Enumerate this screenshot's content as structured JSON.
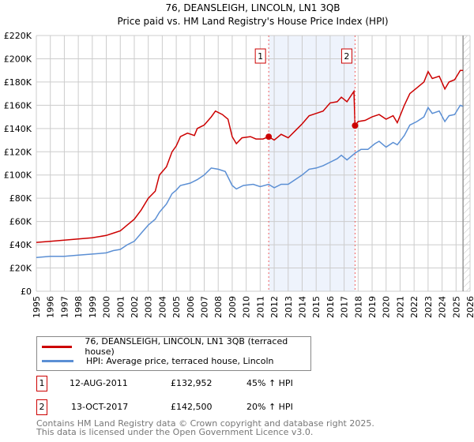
{
  "chart_data": {
    "type": "line",
    "title": "76, DEANSLEIGH, LINCOLN, LN1 3QB",
    "subtitle": "Price paid vs. HM Land Registry's House Price Index (HPI)",
    "xlim": [
      1995,
      2026
    ],
    "ylim": [
      0,
      220000
    ],
    "yticks": [
      0,
      20000,
      40000,
      60000,
      80000,
      100000,
      120000,
      140000,
      160000,
      180000,
      200000,
      220000
    ],
    "ytick_labels": [
      "£0",
      "£20K",
      "£40K",
      "£60K",
      "£80K",
      "£100K",
      "£120K",
      "£140K",
      "£160K",
      "£180K",
      "£200K",
      "£220K"
    ],
    "xticks": [
      1995,
      1996,
      1997,
      1998,
      1999,
      2000,
      2001,
      2002,
      2003,
      2004,
      2005,
      2006,
      2007,
      2008,
      2009,
      2010,
      2011,
      2012,
      2013,
      2014,
      2015,
      2016,
      2017,
      2018,
      2019,
      2020,
      2021,
      2022,
      2023,
      2024,
      2025,
      2026
    ],
    "grid": true,
    "shaded_range": [
      2011.61,
      2017.78
    ],
    "forecast_hatch_from": 2025.5,
    "series": [
      {
        "name": "76, DEANSLEIGH, LINCOLN, LN1 3QB (terraced house)",
        "color": "#cc0000",
        "points": [
          [
            1995,
            42
          ],
          [
            1996,
            43
          ],
          [
            1997,
            44
          ],
          [
            1998,
            45
          ],
          [
            1999,
            46
          ],
          [
            2000,
            48
          ],
          [
            2000.5,
            50
          ],
          [
            2001,
            52
          ],
          [
            2001.5,
            57
          ],
          [
            2002,
            62
          ],
          [
            2002.5,
            70
          ],
          [
            2003,
            80
          ],
          [
            2003.5,
            86
          ],
          [
            2003.8,
            100
          ],
          [
            2004.3,
            107
          ],
          [
            2004.7,
            120
          ],
          [
            2005,
            125
          ],
          [
            2005.3,
            133
          ],
          [
            2005.8,
            136
          ],
          [
            2006.3,
            134
          ],
          [
            2006.5,
            140
          ],
          [
            2007,
            143
          ],
          [
            2007.5,
            150
          ],
          [
            2007.8,
            155
          ],
          [
            2008.3,
            152
          ],
          [
            2008.7,
            148
          ],
          [
            2009,
            133
          ],
          [
            2009.3,
            127
          ],
          [
            2009.7,
            132
          ],
          [
            2010.3,
            133
          ],
          [
            2010.7,
            131
          ],
          [
            2011.2,
            131
          ],
          [
            2011.61,
            132.952
          ],
          [
            2012,
            130
          ],
          [
            2012.5,
            135
          ],
          [
            2013,
            132
          ],
          [
            2013.5,
            138
          ],
          [
            2014,
            144
          ],
          [
            2014.5,
            151
          ],
          [
            2015,
            153
          ],
          [
            2015.5,
            155
          ],
          [
            2016,
            162
          ],
          [
            2016.5,
            163
          ],
          [
            2016.8,
            167
          ],
          [
            2017.2,
            163
          ],
          [
            2017.7,
            172
          ],
          [
            2017.78,
            142.5
          ],
          [
            2018,
            146
          ],
          [
            2018.5,
            147
          ],
          [
            2019,
            150
          ],
          [
            2019.5,
            152
          ],
          [
            2020,
            148
          ],
          [
            2020.5,
            151
          ],
          [
            2020.8,
            145
          ],
          [
            2021.3,
            160
          ],
          [
            2021.7,
            170
          ],
          [
            2022.2,
            175
          ],
          [
            2022.7,
            180
          ],
          [
            2023,
            189
          ],
          [
            2023.3,
            183
          ],
          [
            2023.8,
            185
          ],
          [
            2024.2,
            174
          ],
          [
            2024.5,
            180
          ],
          [
            2024.9,
            182
          ],
          [
            2025.3,
            190
          ],
          [
            2025.5,
            190
          ]
        ]
      },
      {
        "name": "HPI: Average price, terraced house, Lincoln",
        "color": "#5b8fd4",
        "points": [
          [
            1995,
            29
          ],
          [
            1996,
            30
          ],
          [
            1997,
            30
          ],
          [
            1998,
            31
          ],
          [
            1999,
            32
          ],
          [
            2000,
            33
          ],
          [
            2000.5,
            35
          ],
          [
            2001,
            36
          ],
          [
            2001.5,
            40
          ],
          [
            2002,
            43
          ],
          [
            2002.5,
            50
          ],
          [
            2003,
            57
          ],
          [
            2003.5,
            62
          ],
          [
            2003.8,
            68
          ],
          [
            2004.3,
            75
          ],
          [
            2004.7,
            84
          ],
          [
            2005,
            87
          ],
          [
            2005.3,
            91
          ],
          [
            2006,
            93
          ],
          [
            2006.5,
            96
          ],
          [
            2007,
            100
          ],
          [
            2007.5,
            106
          ],
          [
            2008,
            105
          ],
          [
            2008.5,
            103
          ],
          [
            2009,
            91
          ],
          [
            2009.3,
            88
          ],
          [
            2009.8,
            91
          ],
          [
            2010.5,
            92
          ],
          [
            2011,
            90
          ],
          [
            2011.6,
            92
          ],
          [
            2012,
            89
          ],
          [
            2012.5,
            92
          ],
          [
            2013,
            92
          ],
          [
            2013.5,
            96
          ],
          [
            2014,
            100
          ],
          [
            2014.5,
            105
          ],
          [
            2015,
            106
          ],
          [
            2015.5,
            108
          ],
          [
            2016,
            111
          ],
          [
            2016.5,
            114
          ],
          [
            2016.8,
            117
          ],
          [
            2017.2,
            113
          ],
          [
            2017.8,
            119
          ],
          [
            2018.2,
            122
          ],
          [
            2018.7,
            122
          ],
          [
            2019.2,
            127
          ],
          [
            2019.5,
            129
          ],
          [
            2020,
            124
          ],
          [
            2020.5,
            128
          ],
          [
            2020.8,
            126
          ],
          [
            2021.3,
            134
          ],
          [
            2021.7,
            143
          ],
          [
            2022.2,
            146
          ],
          [
            2022.7,
            150
          ],
          [
            2023,
            158
          ],
          [
            2023.3,
            153
          ],
          [
            2023.8,
            155
          ],
          [
            2024.2,
            146
          ],
          [
            2024.5,
            151
          ],
          [
            2024.9,
            152
          ],
          [
            2025.3,
            160
          ],
          [
            2025.5,
            159
          ]
        ]
      }
    ],
    "value_unit": "thousand GBP",
    "annotations": [
      {
        "label": "1",
        "x": 2011.61,
        "y": 132.952
      },
      {
        "label": "2",
        "x": 2017.78,
        "y": 142.5
      }
    ]
  },
  "legend": {
    "items": [
      "76, DEANSLEIGH, LINCOLN, LN1 3QB (terraced house)",
      "HPI: Average price, terraced house, Lincoln"
    ]
  },
  "sales": [
    {
      "num": "1",
      "date": "12-AUG-2011",
      "price": "£132,952",
      "hpi": "45% ↑ HPI"
    },
    {
      "num": "2",
      "date": "13-OCT-2017",
      "price": "£142,500",
      "hpi": "20% ↑ HPI"
    }
  ],
  "footer": {
    "line1": "Contains HM Land Registry data © Crown copyright and database right 2025.",
    "line2": "This data is licensed under the Open Government Licence v3.0."
  }
}
